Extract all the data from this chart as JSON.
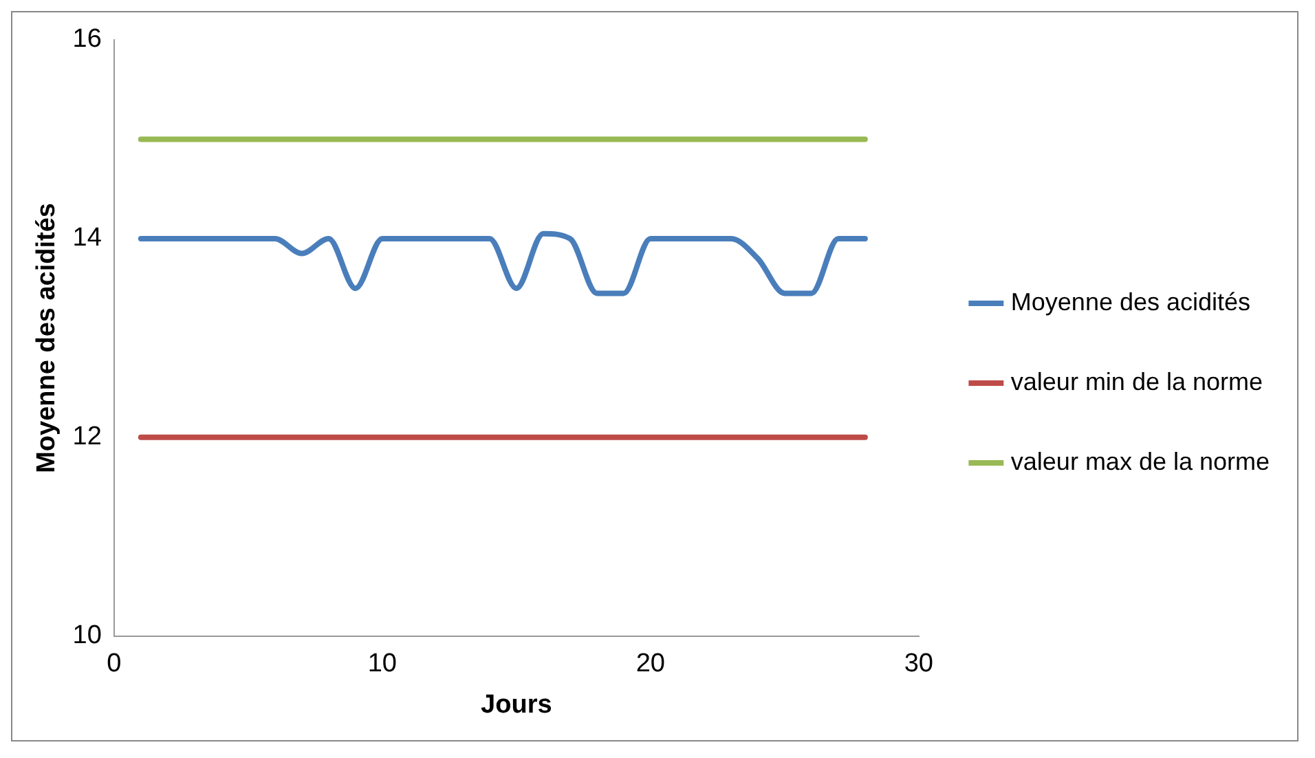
{
  "chart_data": {
    "type": "line",
    "xlabel": "Jours",
    "ylabel": "Moyenne des acidités",
    "x": [
      1,
      2,
      3,
      4,
      5,
      6,
      7,
      8,
      9,
      10,
      11,
      12,
      13,
      14,
      15,
      16,
      17,
      18,
      19,
      20,
      21,
      22,
      23,
      24,
      25,
      26,
      27,
      28
    ],
    "series": [
      {
        "name": "Moyenne des acidités",
        "color": "#4a7ebb",
        "values": [
          14,
          14,
          14,
          14,
          14,
          14,
          13.85,
          14,
          13.5,
          14,
          14,
          14,
          14,
          14,
          13.5,
          14.05,
          14,
          13.45,
          13.45,
          14,
          14,
          14,
          14,
          13.8,
          13.45,
          13.45,
          14,
          14
        ]
      },
      {
        "name": "valeur min de la norme",
        "color": "#be4b48",
        "values": [
          12,
          12,
          12,
          12,
          12,
          12,
          12,
          12,
          12,
          12,
          12,
          12,
          12,
          12,
          12,
          12,
          12,
          12,
          12,
          12,
          12,
          12,
          12,
          12,
          12,
          12,
          12,
          12
        ]
      },
      {
        "name": "valeur max de la norme",
        "color": "#98b954",
        "values": [
          15,
          15,
          15,
          15,
          15,
          15,
          15,
          15,
          15,
          15,
          15,
          15,
          15,
          15,
          15,
          15,
          15,
          15,
          15,
          15,
          15,
          15,
          15,
          15,
          15,
          15,
          15,
          15
        ]
      }
    ],
    "xlim": [
      0,
      30
    ],
    "xticks": [
      0,
      10,
      20,
      30
    ],
    "ylim": [
      10,
      16
    ],
    "yticks": [
      10,
      12,
      14,
      16
    ],
    "grid": false,
    "legend": "right",
    "marker": "none",
    "line_style": "solid"
  }
}
